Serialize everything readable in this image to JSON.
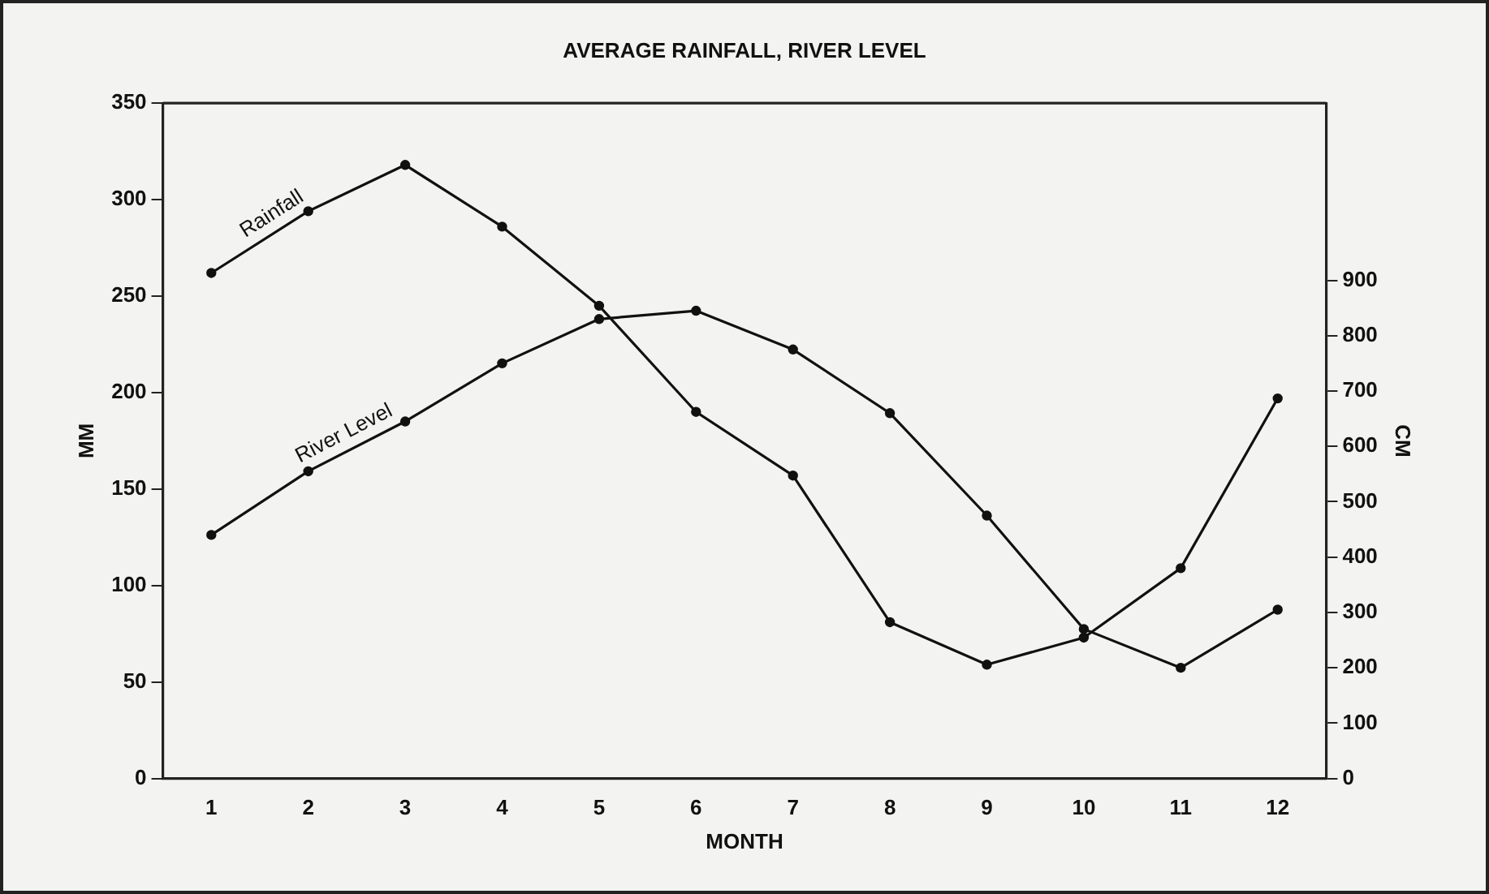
{
  "chart_data": {
    "type": "line",
    "title": "AVERAGE RAINFALL, RIVER LEVEL",
    "xlabel": "MONTH",
    "ylabel": "MM",
    "y2label": "CM",
    "x": [
      1,
      2,
      3,
      4,
      5,
      6,
      7,
      8,
      9,
      10,
      11,
      12
    ],
    "xlim": [
      0.5,
      12.5
    ],
    "xticks": [
      1,
      2,
      3,
      4,
      5,
      6,
      7,
      8,
      9,
      10,
      11,
      12
    ],
    "series": [
      {
        "name": "Rainfall",
        "color": "#111111",
        "values": [
          262,
          294,
          318,
          286,
          245,
          190,
          157,
          81,
          59,
          73,
          109,
          197
        ]
      },
      {
        "name": "River Level",
        "color": "#111111",
        "axis": "y2",
        "values": [
          440,
          555,
          645,
          750,
          830,
          845,
          775,
          660,
          475,
          270,
          200,
          305
        ]
      }
    ],
    "ylim": [
      0,
      350
    ],
    "yticks": [
      0,
      50,
      100,
      150,
      200,
      250,
      300,
      350
    ],
    "y2lim": [
      0,
      1220
    ],
    "y2ticks": [
      0,
      100,
      200,
      300,
      400,
      500,
      600,
      700,
      800,
      900
    ],
    "marker": "circle",
    "line_style": "solid",
    "grid": false,
    "legend": false
  }
}
